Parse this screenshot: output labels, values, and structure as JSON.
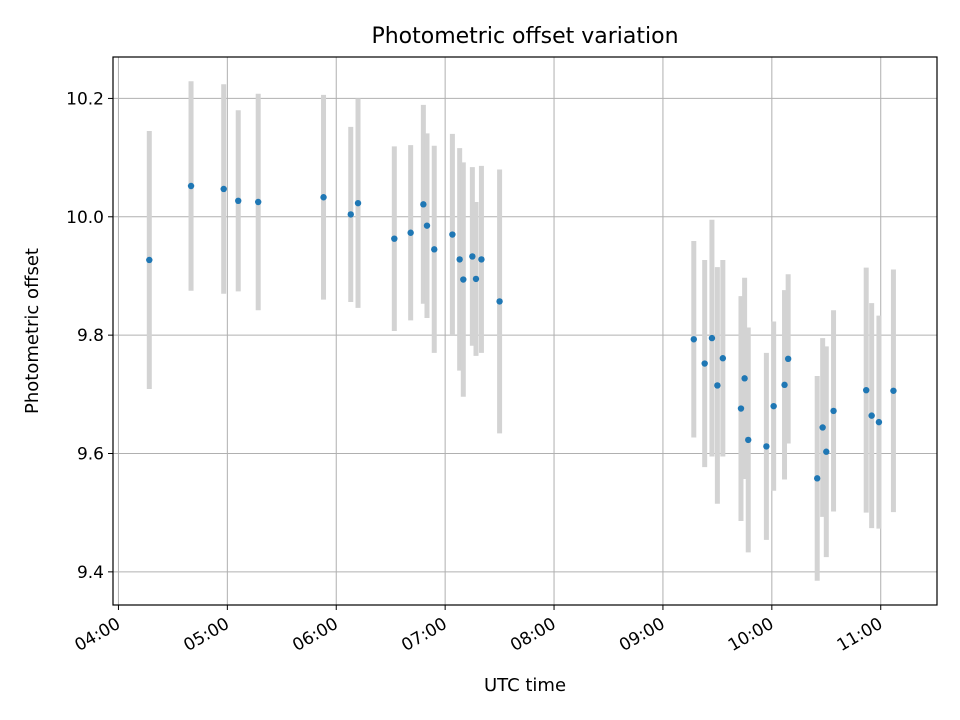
{
  "chart_data": {
    "type": "scatter",
    "title": "Photometric offset variation",
    "xlabel": "UTC time",
    "ylabel": "Photometric offset",
    "x_ticks": [
      "04:00",
      "05:00",
      "06:00",
      "07:00",
      "08:00",
      "09:00",
      "10:00",
      "11:00"
    ],
    "y_ticks": [
      "9.4",
      "9.6",
      "9.8",
      "10.0",
      "10.2"
    ],
    "xlim": [
      "03:57",
      "11:31"
    ],
    "ylim": [
      9.344,
      10.27
    ],
    "grid": true,
    "legend": "none",
    "colors": {
      "marker": "#1f77b4",
      "errorbar": "#d3d3d3",
      "grid": "#b0b0b0",
      "axes": "#000000"
    },
    "points": [
      {
        "x": "04:17",
        "y": 9.927,
        "yerr": 0.218
      },
      {
        "x": "04:40",
        "y": 10.052,
        "yerr": 0.177
      },
      {
        "x": "04:58",
        "y": 10.047,
        "yerr": 0.177
      },
      {
        "x": "05:06",
        "y": 10.027,
        "yerr": 0.153
      },
      {
        "x": "05:17",
        "y": 10.025,
        "yerr": 0.183
      },
      {
        "x": "05:53",
        "y": 10.033,
        "yerr": 0.173
      },
      {
        "x": "06:08",
        "y": 10.004,
        "yerr": 0.148
      },
      {
        "x": "06:12",
        "y": 10.023,
        "yerr": 0.177
      },
      {
        "x": "06:32",
        "y": 9.963,
        "yerr": 0.156
      },
      {
        "x": "06:41",
        "y": 9.973,
        "yerr": 0.148
      },
      {
        "x": "06:48",
        "y": 10.021,
        "yerr": 0.168
      },
      {
        "x": "06:50",
        "y": 9.985,
        "yerr": 0.156
      },
      {
        "x": "06:54",
        "y": 9.945,
        "yerr": 0.175
      },
      {
        "x": "07:04",
        "y": 9.97,
        "yerr": 0.17
      },
      {
        "x": "07:08",
        "y": 9.928,
        "yerr": 0.188
      },
      {
        "x": "07:10",
        "y": 9.894,
        "yerr": 0.198
      },
      {
        "x": "07:15",
        "y": 9.933,
        "yerr": 0.151
      },
      {
        "x": "07:17",
        "y": 9.895,
        "yerr": 0.13
      },
      {
        "x": "07:20",
        "y": 9.928,
        "yerr": 0.158
      },
      {
        "x": "07:30",
        "y": 9.857,
        "yerr": 0.223
      },
      {
        "x": "09:17",
        "y": 9.793,
        "yerr": 0.166
      },
      {
        "x": "09:23",
        "y": 9.752,
        "yerr": 0.175
      },
      {
        "x": "09:27",
        "y": 9.795,
        "yerr": 0.2
      },
      {
        "x": "09:30",
        "y": 9.715,
        "yerr": 0.2
      },
      {
        "x": "09:33",
        "y": 9.761,
        "yerr": 0.166
      },
      {
        "x": "09:43",
        "y": 9.676,
        "yerr": 0.19
      },
      {
        "x": "09:45",
        "y": 9.727,
        "yerr": 0.17
      },
      {
        "x": "09:47",
        "y": 9.623,
        "yerr": 0.19
      },
      {
        "x": "09:57",
        "y": 9.612,
        "yerr": 0.158
      },
      {
        "x": "10:01",
        "y": 9.68,
        "yerr": 0.143
      },
      {
        "x": "10:07",
        "y": 9.716,
        "yerr": 0.16
      },
      {
        "x": "10:09",
        "y": 9.76,
        "yerr": 0.143
      },
      {
        "x": "10:25",
        "y": 9.558,
        "yerr": 0.173
      },
      {
        "x": "10:28",
        "y": 9.644,
        "yerr": 0.151
      },
      {
        "x": "10:30",
        "y": 9.603,
        "yerr": 0.178
      },
      {
        "x": "10:34",
        "y": 9.672,
        "yerr": 0.17
      },
      {
        "x": "10:52",
        "y": 9.707,
        "yerr": 0.207
      },
      {
        "x": "10:55",
        "y": 9.664,
        "yerr": 0.19
      },
      {
        "x": "10:59",
        "y": 9.653,
        "yerr": 0.18
      },
      {
        "x": "11:07",
        "y": 9.706,
        "yerr": 0.205
      }
    ]
  }
}
